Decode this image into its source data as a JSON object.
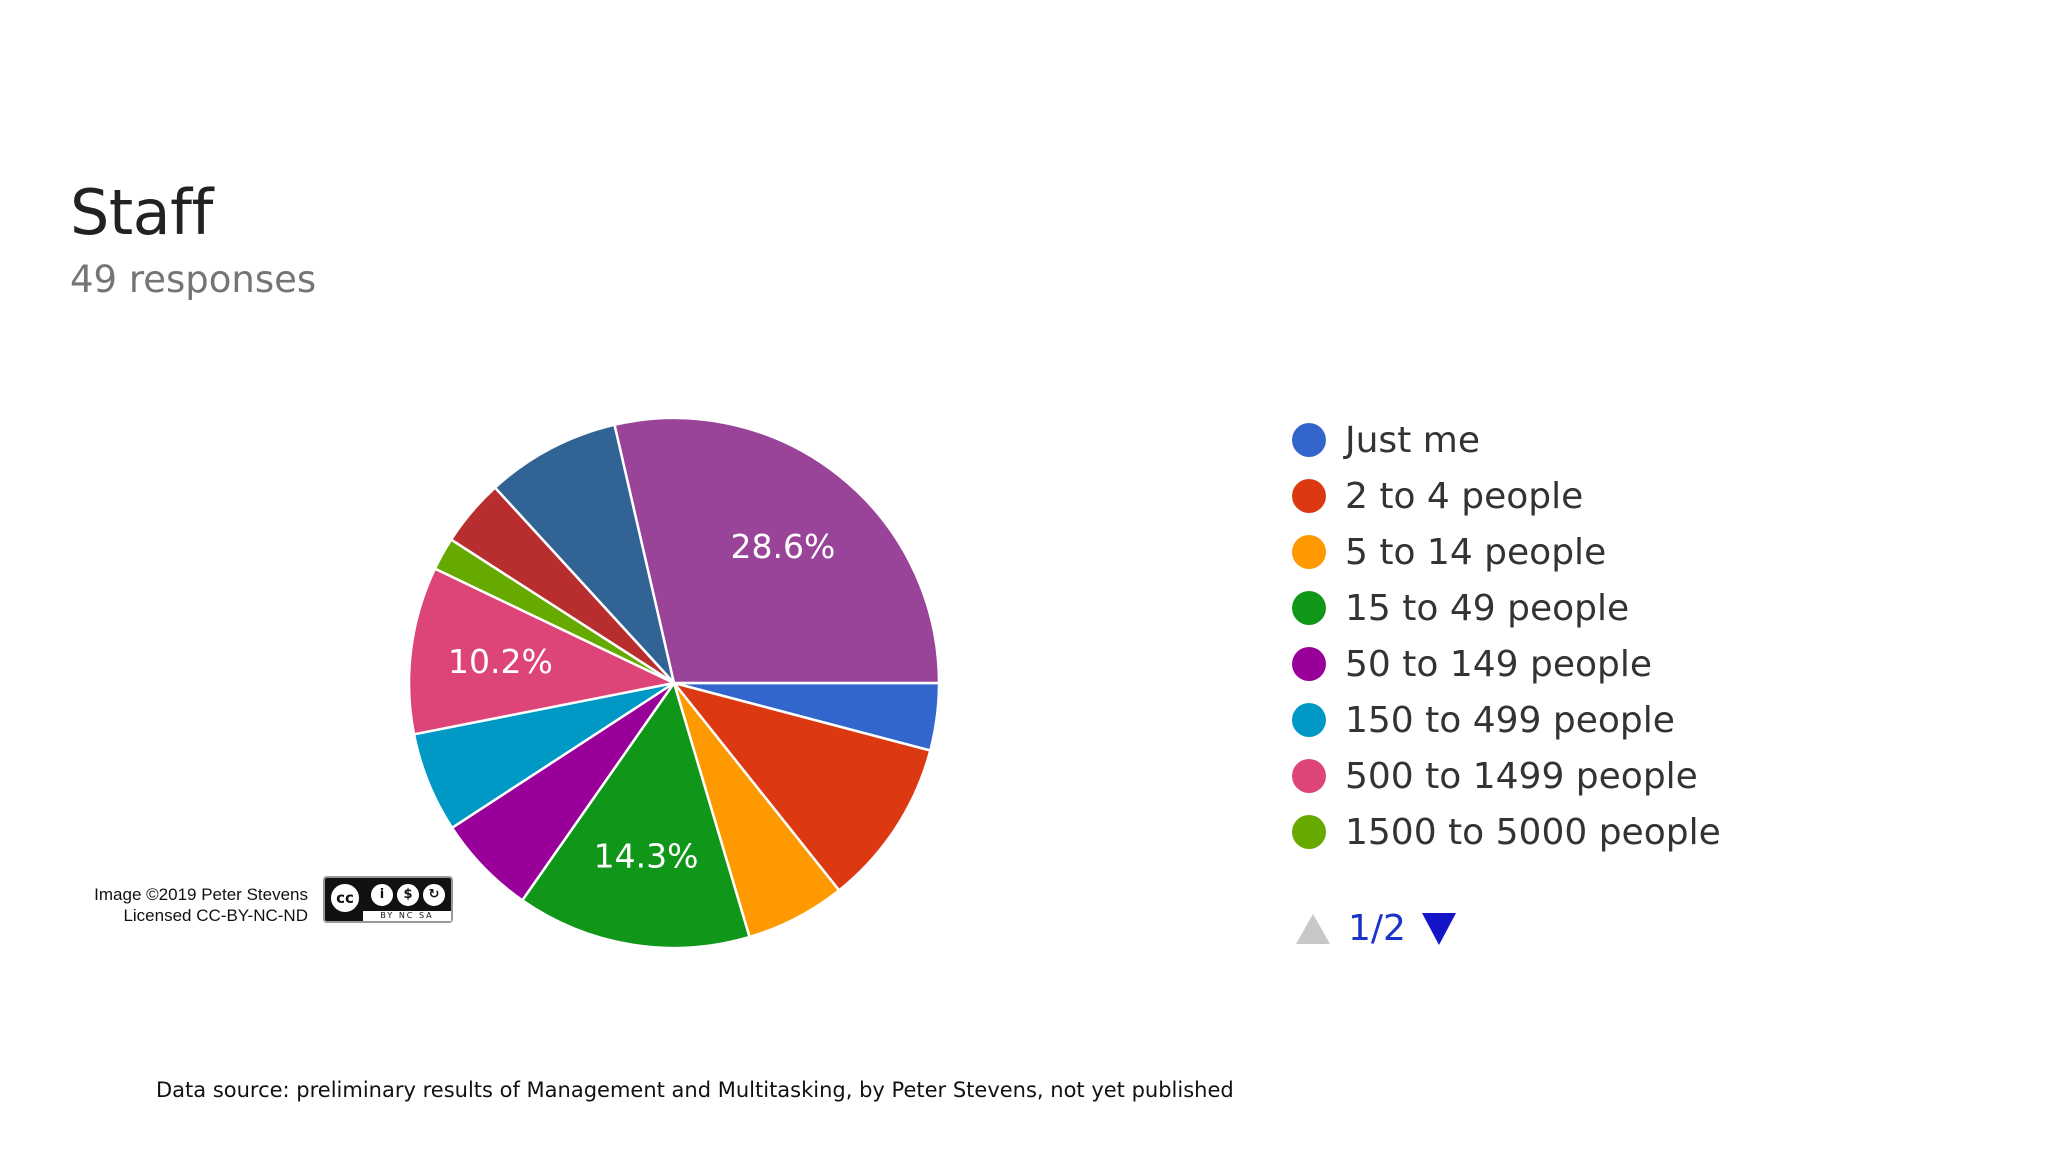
{
  "chart_data": {
    "type": "pie",
    "title": "Staff",
    "subtitle": "49 responses",
    "categories": [
      "Just me",
      "2 to 4 people",
      "5 to 14 people",
      "15 to 49 people",
      "50 to 149 people",
      "150 to 499 people",
      "500 to 1499 people",
      "1500 to 5000 people",
      "(unlabeled slice)",
      "(unlabeled slice)",
      "28.6% slice"
    ],
    "values": [
      4.1,
      10.2,
      6.1,
      14.3,
      6.1,
      6.1,
      10.2,
      2.0,
      4.1,
      8.2,
      28.6
    ],
    "data_labels": [
      "",
      "",
      "",
      "14.3%",
      "",
      "",
      "10.2%",
      "",
      "",
      "",
      "28.6%"
    ],
    "colors": [
      "#3366cc",
      "#dc3912",
      "#ff9900",
      "#109618",
      "#990099",
      "#0099c6",
      "#dd4477",
      "#66aa00",
      "#b82e2e",
      "#316395",
      "#994499"
    ],
    "legend_placement": "right",
    "legend": [
      {
        "label": "Just me",
        "color": "#3366cc"
      },
      {
        "label": "2 to 4 people",
        "color": "#dc3912"
      },
      {
        "label": "5 to 14 people",
        "color": "#ff9900"
      },
      {
        "label": "15 to 49 people",
        "color": "#109618"
      },
      {
        "label": "50 to 149 people",
        "color": "#990099"
      },
      {
        "label": "150 to 499 people",
        "color": "#0099c6"
      },
      {
        "label": "500 to 1499 people",
        "color": "#dd4477"
      },
      {
        "label": "1500 to 5000 people",
        "color": "#66aa00"
      }
    ]
  },
  "pager": {
    "label": "1/2",
    "prev_icon": "triangle-up-icon",
    "next_icon": "triangle-down-icon"
  },
  "credit": {
    "line1": "Image ©2019 Peter Stevens",
    "line2": "Licensed CC-BY-NC-ND",
    "badge_icon": "cc-by-nc-sa-icon"
  },
  "source": "Data source: preliminary results of Management and Multitasking, by Peter Stevens, not yet published"
}
